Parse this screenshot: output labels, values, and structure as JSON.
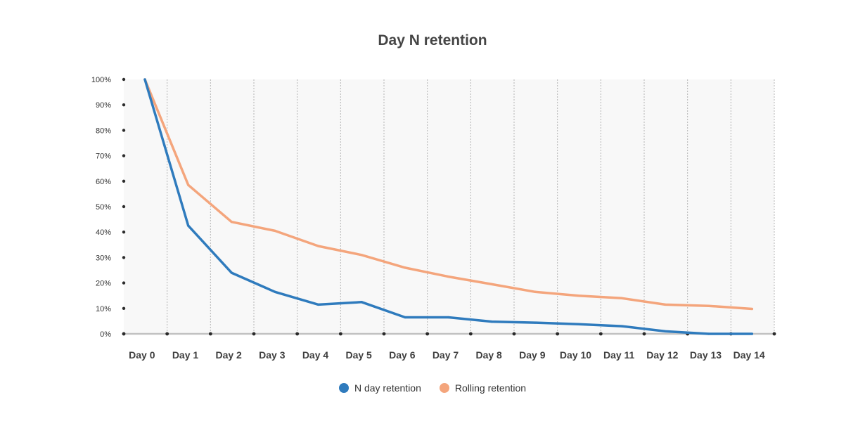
{
  "chart_data": {
    "type": "line",
    "title": "Day N retention",
    "xlabel": "",
    "ylabel": "",
    "categories": [
      "Day 0",
      "Day 1",
      "Day 2",
      "Day 3",
      "Day 4",
      "Day 5",
      "Day 6",
      "Day 7",
      "Day 8",
      "Day 9",
      "Day 10",
      "Day 11",
      "Day 12",
      "Day 13",
      "Day 14"
    ],
    "y_ticks": [
      "0%",
      "10%",
      "20%",
      "30%",
      "40%",
      "50%",
      "60%",
      "70%",
      "80%",
      "90%",
      "100%"
    ],
    "ylim": [
      0,
      100
    ],
    "grid": "vertical dashed",
    "legend_position": "bottom",
    "series": [
      {
        "name": "N day retention",
        "color": "#2f7bbd",
        "values": [
          100,
          42.5,
          24,
          16.5,
          11.5,
          12.5,
          6.5,
          6.5,
          4.8,
          4.4,
          3.8,
          3.0,
          1.0,
          0,
          0
        ]
      },
      {
        "name": "Rolling retention",
        "color": "#f4a57c",
        "values": [
          100,
          58.5,
          44,
          40.5,
          34.5,
          31,
          26,
          22.5,
          19.5,
          16.5,
          15,
          14,
          11.5,
          11,
          9.8
        ]
      }
    ]
  }
}
